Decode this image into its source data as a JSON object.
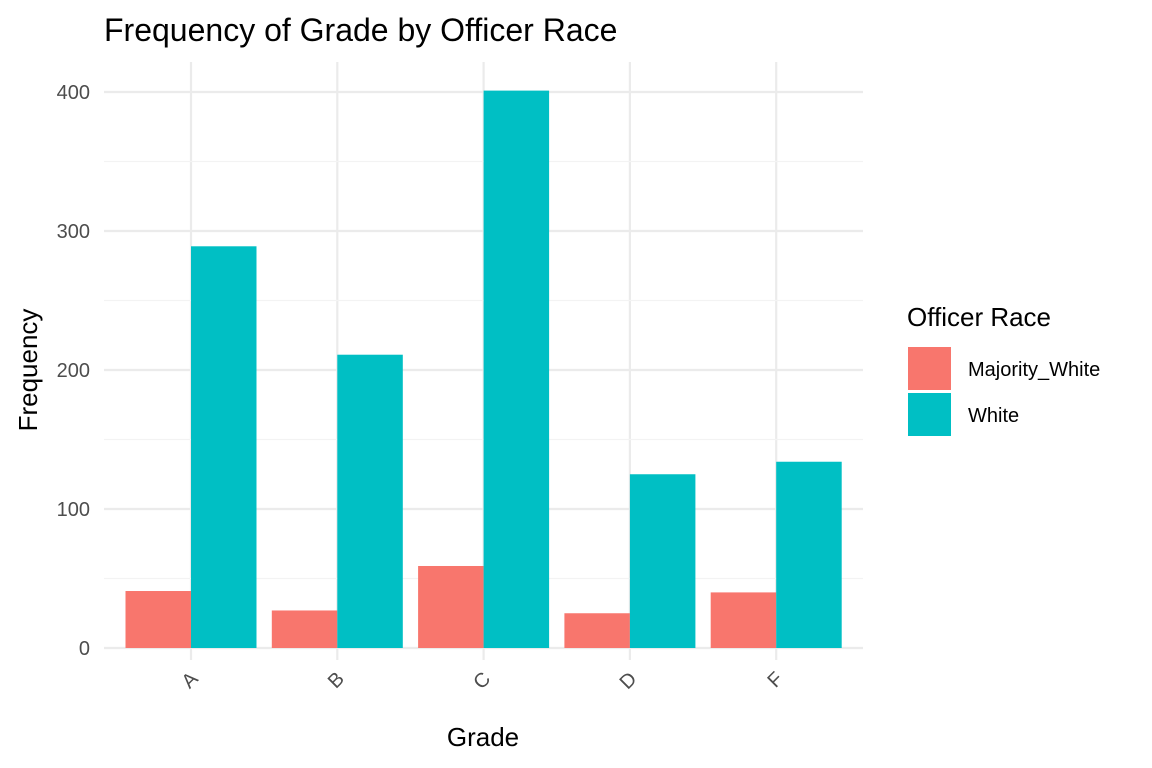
{
  "chart_data": {
    "type": "bar",
    "title": "Frequency of Grade by Officer Race",
    "xlabel": "Grade",
    "ylabel": "Frequency",
    "categories": [
      "A",
      "B",
      "C",
      "D",
      "F"
    ],
    "series": [
      {
        "name": "Majority_White",
        "color": "#F8766D",
        "values": [
          41,
          27,
          59,
          25,
          40
        ]
      },
      {
        "name": "White",
        "color": "#00BFC4",
        "values": [
          289,
          211,
          401,
          125,
          134
        ]
      }
    ],
    "ylim": [
      0,
      420
    ],
    "yticks": [
      0,
      100,
      200,
      300,
      400
    ],
    "y_minor_ticks": [
      50,
      150,
      250,
      350
    ],
    "grid": true,
    "legend": {
      "title": "Officer Race",
      "position": "right"
    },
    "x_tick_rotation_deg": 45
  }
}
